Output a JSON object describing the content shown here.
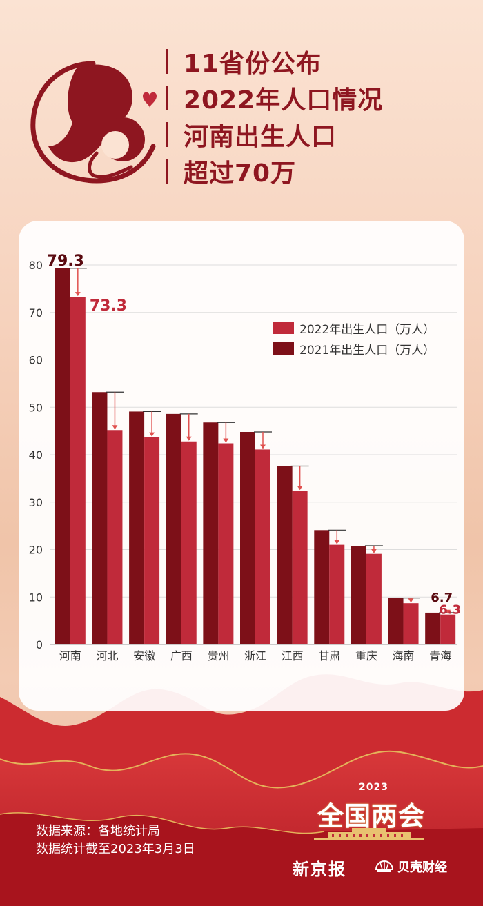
{
  "title_lines": [
    "11省份公布",
    "2022年人口情况",
    "河南出生人口",
    "超过70万"
  ],
  "chart_data": {
    "type": "bar",
    "title": "",
    "categories": [
      "河南",
      "河北",
      "安徽",
      "广西",
      "贵州",
      "浙江",
      "江西",
      "甘肃",
      "重庆",
      "海南",
      "青海"
    ],
    "series": [
      {
        "name": "2021年出生人口（万人）",
        "color": "#7d1018",
        "values": [
          79.3,
          53.2,
          49.1,
          48.6,
          46.8,
          44.8,
          37.6,
          24.1,
          20.8,
          9.8,
          6.7
        ]
      },
      {
        "name": "2022年出生人口（万人）",
        "color": "#c02a3a",
        "values": [
          73.3,
          45.2,
          43.7,
          42.8,
          42.4,
          41.1,
          32.4,
          21.0,
          19.1,
          8.7,
          6.3
        ]
      }
    ],
    "ylim": [
      0,
      80
    ],
    "yticks": [
      0,
      10,
      20,
      30,
      40,
      50,
      60,
      70,
      80
    ],
    "data_labels": [
      {
        "category": "河南",
        "series": 0,
        "text": "79.3"
      },
      {
        "category": "河南",
        "series": 1,
        "text": "73.3"
      },
      {
        "category": "青海",
        "series": 0,
        "text": "6.7"
      },
      {
        "category": "青海",
        "series": 1,
        "text": "6.3"
      }
    ],
    "xlabel": "",
    "ylabel": "",
    "legend_position": "top-right"
  },
  "legend": [
    {
      "label": "2022年出生人口（万人）",
      "color": "#c02a3a"
    },
    {
      "label": "2021年出生人口（万人）",
      "color": "#7d1018"
    }
  ],
  "footer": {
    "source": "数据来源：各地统计局",
    "cutoff": "数据统计截至2023年3月3日"
  },
  "lianghui": {
    "year": "2023",
    "title": "全国两会"
  },
  "brands": {
    "newspaper": "新京报",
    "beike": "贝壳财经"
  },
  "colors": {
    "accent": "#8e1620",
    "bar_2021": "#7d1018",
    "bar_2022": "#c02a3a",
    "arrow": "#e0504e"
  }
}
